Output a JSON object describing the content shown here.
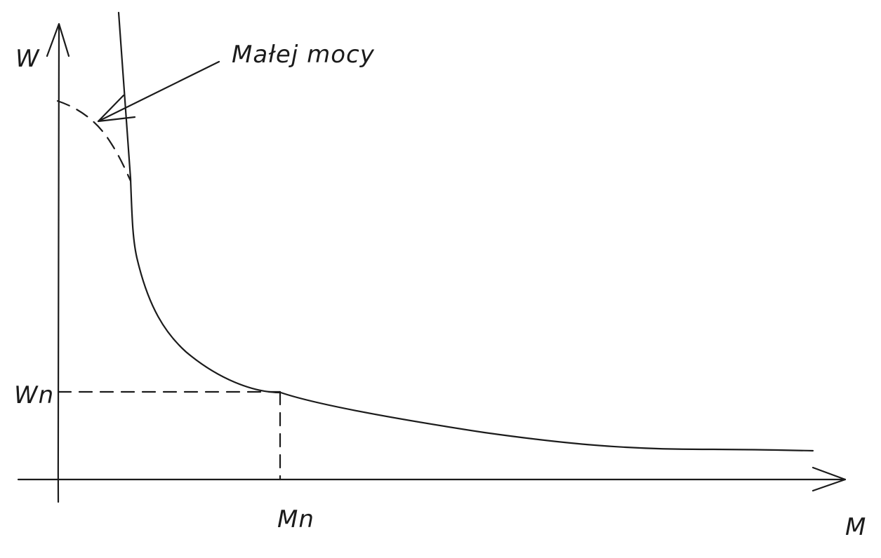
{
  "axes": {
    "y_label": "W",
    "x_label": "M"
  },
  "markers": {
    "wn_label": "Wn",
    "mn_label": "Mn"
  },
  "annotation": {
    "text": "Małej mocy"
  },
  "colors": {
    "ink": "#1b1b1b",
    "background": "#ffffff"
  }
}
